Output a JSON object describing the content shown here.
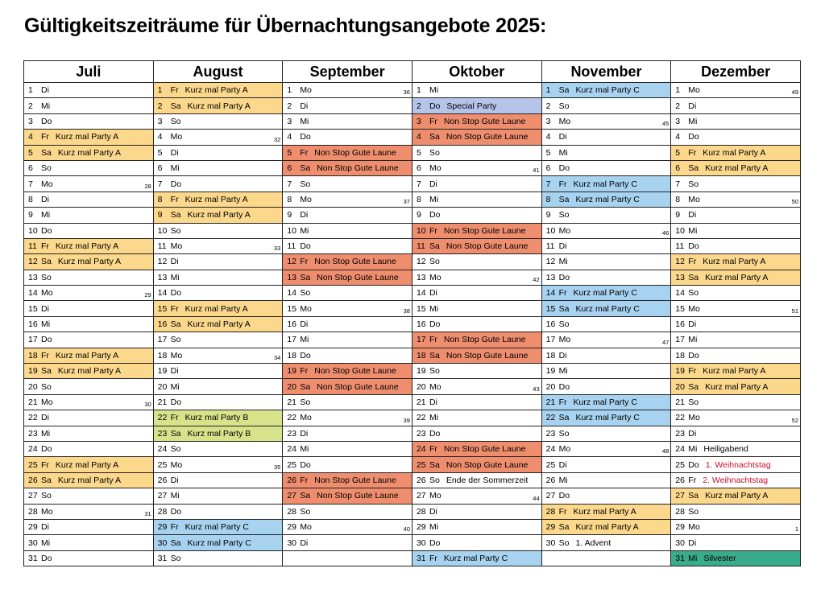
{
  "title": "Gültigkeitszeiträume für Übernachtungsangebote 2025:",
  "colors": {
    "kurz_a": "#fcd88c",
    "kurz_b": "#d7e38a",
    "kurz_c": "#a8d3f0",
    "special": "#b6c4ea",
    "nonstop": "#ee8e6e",
    "silvester": "#3aab8b",
    "holiday_text": "#c8102e"
  },
  "months": [
    {
      "name": "Juli",
      "days": [
        {
          "d": "1",
          "w": "Di"
        },
        {
          "d": "2",
          "w": "Mi"
        },
        {
          "d": "3",
          "w": "Do"
        },
        {
          "d": "4",
          "w": "Fr",
          "e": "Kurz mal Party A",
          "t": "kurz_a"
        },
        {
          "d": "5",
          "w": "Sa",
          "e": "Kurz mal Party A",
          "t": "kurz_a"
        },
        {
          "d": "6",
          "w": "So"
        },
        {
          "d": "7",
          "w": "Mo",
          "wk": "28"
        },
        {
          "d": "8",
          "w": "Di"
        },
        {
          "d": "9",
          "w": "Mi"
        },
        {
          "d": "10",
          "w": "Do"
        },
        {
          "d": "11",
          "w": "Fr",
          "e": "Kurz mal Party A",
          "t": "kurz_a"
        },
        {
          "d": "12",
          "w": "Sa",
          "e": "Kurz mal Party A",
          "t": "kurz_a"
        },
        {
          "d": "13",
          "w": "So"
        },
        {
          "d": "14",
          "w": "Mo",
          "wk": "29"
        },
        {
          "d": "15",
          "w": "Di"
        },
        {
          "d": "16",
          "w": "Mi"
        },
        {
          "d": "17",
          "w": "Do"
        },
        {
          "d": "18",
          "w": "Fr",
          "e": "Kurz mal Party A",
          "t": "kurz_a"
        },
        {
          "d": "19",
          "w": "Sa",
          "e": "Kurz mal Party A",
          "t": "kurz_a"
        },
        {
          "d": "20",
          "w": "So"
        },
        {
          "d": "21",
          "w": "Mo",
          "wk": "30"
        },
        {
          "d": "22",
          "w": "Di"
        },
        {
          "d": "23",
          "w": "Mi"
        },
        {
          "d": "24",
          "w": "Do"
        },
        {
          "d": "25",
          "w": "Fr",
          "e": "Kurz mal Party A",
          "t": "kurz_a"
        },
        {
          "d": "26",
          "w": "Sa",
          "e": "Kurz mal Party A",
          "t": "kurz_a"
        },
        {
          "d": "27",
          "w": "So"
        },
        {
          "d": "28",
          "w": "Mo",
          "wk": "31"
        },
        {
          "d": "29",
          "w": "Di"
        },
        {
          "d": "30",
          "w": "Mi"
        },
        {
          "d": "31",
          "w": "Do"
        }
      ]
    },
    {
      "name": "August",
      "days": [
        {
          "d": "1",
          "w": "Fr",
          "e": "Kurz mal Party A",
          "t": "kurz_a"
        },
        {
          "d": "2",
          "w": "Sa",
          "e": "Kurz mal Party A",
          "t": "kurz_a"
        },
        {
          "d": "3",
          "w": "So"
        },
        {
          "d": "4",
          "w": "Mo",
          "wk": "32"
        },
        {
          "d": "5",
          "w": "Di"
        },
        {
          "d": "6",
          "w": "Mi"
        },
        {
          "d": "7",
          "w": "Do"
        },
        {
          "d": "8",
          "w": "Fr",
          "e": "Kurz mal Party A",
          "t": "kurz_a"
        },
        {
          "d": "9",
          "w": "Sa",
          "e": "Kurz mal Party A",
          "t": "kurz_a"
        },
        {
          "d": "10",
          "w": "So"
        },
        {
          "d": "11",
          "w": "Mo",
          "wk": "33"
        },
        {
          "d": "12",
          "w": "Di"
        },
        {
          "d": "13",
          "w": "Mi"
        },
        {
          "d": "14",
          "w": "Do"
        },
        {
          "d": "15",
          "w": "Fr",
          "e": "Kurz mal Party A",
          "t": "kurz_a"
        },
        {
          "d": "16",
          "w": "Sa",
          "e": "Kurz mal Party A",
          "t": "kurz_a"
        },
        {
          "d": "17",
          "w": "So"
        },
        {
          "d": "18",
          "w": "Mo",
          "wk": "34"
        },
        {
          "d": "19",
          "w": "Di"
        },
        {
          "d": "20",
          "w": "Mi"
        },
        {
          "d": "21",
          "w": "Do"
        },
        {
          "d": "22",
          "w": "Fr",
          "e": "Kurz mal Party B",
          "t": "kurz_b"
        },
        {
          "d": "23",
          "w": "Sa",
          "e": "Kurz mal Party B",
          "t": "kurz_b"
        },
        {
          "d": "24",
          "w": "So"
        },
        {
          "d": "25",
          "w": "Mo",
          "wk": "35"
        },
        {
          "d": "26",
          "w": "Di"
        },
        {
          "d": "27",
          "w": "Mi"
        },
        {
          "d": "28",
          "w": "Do"
        },
        {
          "d": "29",
          "w": "Fr",
          "e": "Kurz mal Party C",
          "t": "kurz_c"
        },
        {
          "d": "30",
          "w": "Sa",
          "e": "Kurz mal Party C",
          "t": "kurz_c"
        },
        {
          "d": "31",
          "w": "So"
        }
      ]
    },
    {
      "name": "September",
      "days": [
        {
          "d": "1",
          "w": "Mo",
          "wk": "36"
        },
        {
          "d": "2",
          "w": "Di"
        },
        {
          "d": "3",
          "w": "Mi"
        },
        {
          "d": "4",
          "w": "Do"
        },
        {
          "d": "5",
          "w": "Fr",
          "e": "Non Stop Gute Laune",
          "t": "nonstop"
        },
        {
          "d": "6",
          "w": "Sa",
          "e": "Non Stop Gute Laune",
          "t": "nonstop"
        },
        {
          "d": "7",
          "w": "So"
        },
        {
          "d": "8",
          "w": "Mo",
          "wk": "37"
        },
        {
          "d": "9",
          "w": "Di"
        },
        {
          "d": "10",
          "w": "Mi"
        },
        {
          "d": "11",
          "w": "Do"
        },
        {
          "d": "12",
          "w": "Fr",
          "e": "Non Stop Gute Laune",
          "t": "nonstop"
        },
        {
          "d": "13",
          "w": "Sa",
          "e": "Non Stop Gute Laune",
          "t": "nonstop"
        },
        {
          "d": "14",
          "w": "So"
        },
        {
          "d": "15",
          "w": "Mo",
          "wk": "38"
        },
        {
          "d": "16",
          "w": "Di"
        },
        {
          "d": "17",
          "w": "Mi"
        },
        {
          "d": "18",
          "w": "Do"
        },
        {
          "d": "19",
          "w": "Fr",
          "e": "Non Stop Gute Laune",
          "t": "nonstop"
        },
        {
          "d": "20",
          "w": "Sa",
          "e": "Non Stop Gute Laune",
          "t": "nonstop"
        },
        {
          "d": "21",
          "w": "So"
        },
        {
          "d": "22",
          "w": "Mo",
          "wk": "39"
        },
        {
          "d": "23",
          "w": "Di"
        },
        {
          "d": "24",
          "w": "Mi"
        },
        {
          "d": "25",
          "w": "Do"
        },
        {
          "d": "26",
          "w": "Fr",
          "e": "Non Stop Gute Laune",
          "t": "nonstop"
        },
        {
          "d": "27",
          "w": "Sa",
          "e": "Non Stop Gute Laune",
          "t": "nonstop"
        },
        {
          "d": "28",
          "w": "So"
        },
        {
          "d": "29",
          "w": "Mo",
          "wk": "40"
        },
        {
          "d": "30",
          "w": "Di"
        }
      ]
    },
    {
      "name": "Oktober",
      "days": [
        {
          "d": "1",
          "w": "Mi"
        },
        {
          "d": "2",
          "w": "Do",
          "e": "Special Party",
          "t": "special"
        },
        {
          "d": "3",
          "w": "Fr",
          "e": "Non Stop Gute Laune",
          "t": "nonstop"
        },
        {
          "d": "4",
          "w": "Sa",
          "e": "Non Stop Gute Laune",
          "t": "nonstop"
        },
        {
          "d": "5",
          "w": "So"
        },
        {
          "d": "6",
          "w": "Mo",
          "wk": "41"
        },
        {
          "d": "7",
          "w": "Di"
        },
        {
          "d": "8",
          "w": "Mi"
        },
        {
          "d": "9",
          "w": "Do"
        },
        {
          "d": "10",
          "w": "Fr",
          "e": "Non Stop Gute Laune",
          "t": "nonstop"
        },
        {
          "d": "11",
          "w": "Sa",
          "e": "Non Stop Gute Laune",
          "t": "nonstop"
        },
        {
          "d": "12",
          "w": "So"
        },
        {
          "d": "13",
          "w": "Mo",
          "wk": "42"
        },
        {
          "d": "14",
          "w": "Di"
        },
        {
          "d": "15",
          "w": "Mi"
        },
        {
          "d": "16",
          "w": "Do"
        },
        {
          "d": "17",
          "w": "Fr",
          "e": "Non Stop Gute Laune",
          "t": "nonstop"
        },
        {
          "d": "18",
          "w": "Sa",
          "e": "Non Stop Gute Laune",
          "t": "nonstop"
        },
        {
          "d": "19",
          "w": "So"
        },
        {
          "d": "20",
          "w": "Mo",
          "wk": "43"
        },
        {
          "d": "21",
          "w": "Di"
        },
        {
          "d": "22",
          "w": "Mi"
        },
        {
          "d": "23",
          "w": "Do"
        },
        {
          "d": "24",
          "w": "Fr",
          "e": "Non Stop Gute Laune",
          "t": "nonstop"
        },
        {
          "d": "25",
          "w": "Sa",
          "e": "Non Stop Gute Laune",
          "t": "nonstop"
        },
        {
          "d": "26",
          "w": "So",
          "e": "Ende der Sommerzeit"
        },
        {
          "d": "27",
          "w": "Mo",
          "wk": "44"
        },
        {
          "d": "28",
          "w": "Di"
        },
        {
          "d": "29",
          "w": "Mi"
        },
        {
          "d": "30",
          "w": "Do"
        },
        {
          "d": "31",
          "w": "Fr",
          "e": "Kurz mal Party C",
          "t": "kurz_c"
        }
      ]
    },
    {
      "name": "November",
      "days": [
        {
          "d": "1",
          "w": "Sa",
          "e": "Kurz mal Party C",
          "t": "kurz_c"
        },
        {
          "d": "2",
          "w": "So"
        },
        {
          "d": "3",
          "w": "Mo",
          "wk": "45"
        },
        {
          "d": "4",
          "w": "Di"
        },
        {
          "d": "5",
          "w": "Mi"
        },
        {
          "d": "6",
          "w": "Do"
        },
        {
          "d": "7",
          "w": "Fr",
          "e": "Kurz mal Party C",
          "t": "kurz_c"
        },
        {
          "d": "8",
          "w": "Sa",
          "e": "Kurz mal Party C",
          "t": "kurz_c"
        },
        {
          "d": "9",
          "w": "So"
        },
        {
          "d": "10",
          "w": "Mo",
          "wk": "46"
        },
        {
          "d": "11",
          "w": "Di"
        },
        {
          "d": "12",
          "w": "Mi"
        },
        {
          "d": "13",
          "w": "Do"
        },
        {
          "d": "14",
          "w": "Fr",
          "e": "Kurz mal Party C",
          "t": "kurz_c"
        },
        {
          "d": "15",
          "w": "Sa",
          "e": "Kurz mal Party C",
          "t": "kurz_c"
        },
        {
          "d": "16",
          "w": "So"
        },
        {
          "d": "17",
          "w": "Mo",
          "wk": "47"
        },
        {
          "d": "18",
          "w": "Di"
        },
        {
          "d": "19",
          "w": "Mi"
        },
        {
          "d": "20",
          "w": "Do"
        },
        {
          "d": "21",
          "w": "Fr",
          "e": "Kurz mal Party C",
          "t": "kurz_c"
        },
        {
          "d": "22",
          "w": "Sa",
          "e": "Kurz mal Party C",
          "t": "kurz_c"
        },
        {
          "d": "23",
          "w": "So"
        },
        {
          "d": "24",
          "w": "Mo",
          "wk": "48"
        },
        {
          "d": "25",
          "w": "Di"
        },
        {
          "d": "26",
          "w": "Mi"
        },
        {
          "d": "27",
          "w": "Do"
        },
        {
          "d": "28",
          "w": "Fr",
          "e": "Kurz mal Party A",
          "t": "kurz_a"
        },
        {
          "d": "29",
          "w": "Sa",
          "e": "Kurz mal Party A",
          "t": "kurz_a"
        },
        {
          "d": "30",
          "w": "So",
          "e": "1. Advent"
        }
      ]
    },
    {
      "name": "Dezember",
      "days": [
        {
          "d": "1",
          "w": "Mo",
          "wk": "49"
        },
        {
          "d": "2",
          "w": "Di"
        },
        {
          "d": "3",
          "w": "Mi"
        },
        {
          "d": "4",
          "w": "Do"
        },
        {
          "d": "5",
          "w": "Fr",
          "e": "Kurz mal Party A",
          "t": "kurz_a"
        },
        {
          "d": "6",
          "w": "Sa",
          "e": "Kurz mal Party A",
          "t": "kurz_a"
        },
        {
          "d": "7",
          "w": "So"
        },
        {
          "d": "8",
          "w": "Mo",
          "wk": "50"
        },
        {
          "d": "9",
          "w": "Di"
        },
        {
          "d": "10",
          "w": "Mi"
        },
        {
          "d": "11",
          "w": "Do"
        },
        {
          "d": "12",
          "w": "Fr",
          "e": "Kurz mal Party A",
          "t": "kurz_a"
        },
        {
          "d": "13",
          "w": "Sa",
          "e": "Kurz mal Party A",
          "t": "kurz_a"
        },
        {
          "d": "14",
          "w": "So"
        },
        {
          "d": "15",
          "w": "Mo",
          "wk": "51"
        },
        {
          "d": "16",
          "w": "Di"
        },
        {
          "d": "17",
          "w": "Mi"
        },
        {
          "d": "18",
          "w": "Do"
        },
        {
          "d": "19",
          "w": "Fr",
          "e": "Kurz mal Party A",
          "t": "kurz_a"
        },
        {
          "d": "20",
          "w": "Sa",
          "e": "Kurz mal Party A",
          "t": "kurz_a"
        },
        {
          "d": "21",
          "w": "So"
        },
        {
          "d": "22",
          "w": "Mo",
          "wk": "52"
        },
        {
          "d": "23",
          "w": "Di"
        },
        {
          "d": "24",
          "w": "Mi",
          "e": "Heiligabend"
        },
        {
          "d": "25",
          "w": "Do",
          "e": "1. Weihnachtstag",
          "red": true
        },
        {
          "d": "26",
          "w": "Fr",
          "e": "2. Weihnachtstag",
          "red": true
        },
        {
          "d": "27",
          "w": "Sa",
          "e": "Kurz mal Party A",
          "t": "kurz_a"
        },
        {
          "d": "28",
          "w": "So"
        },
        {
          "d": "29",
          "w": "Mo",
          "wk": "1"
        },
        {
          "d": "30",
          "w": "Di"
        },
        {
          "d": "31",
          "w": "Mi",
          "e": "Silvester",
          "t": "silvester"
        }
      ]
    }
  ]
}
